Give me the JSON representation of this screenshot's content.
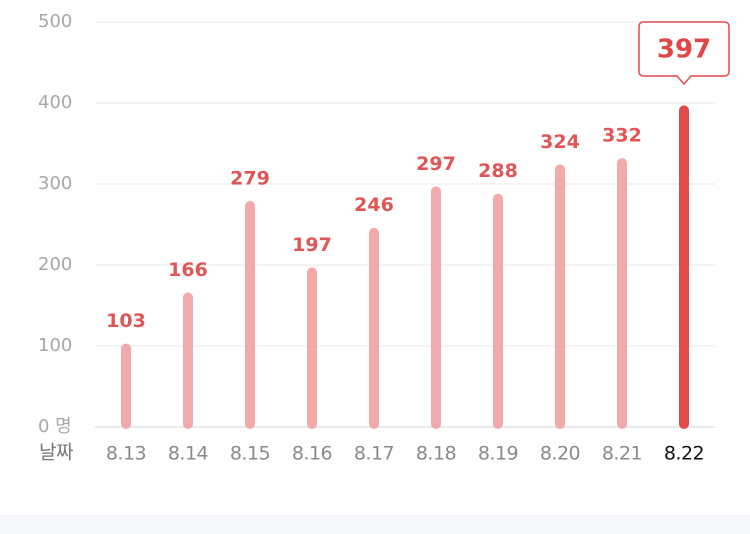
{
  "chart_data": {
    "type": "bar",
    "categories": [
      "8.13",
      "8.14",
      "8.15",
      "8.16",
      "8.17",
      "8.18",
      "8.19",
      "8.20",
      "8.21",
      "8.22"
    ],
    "values": [
      103,
      166,
      279,
      197,
      246,
      297,
      288,
      324,
      332,
      397
    ],
    "colors": [
      "#f2a9a9",
      "#f2a9a9",
      "#f2a9a9",
      "#f2a9a9",
      "#f2a9a9",
      "#f2a9a9",
      "#f2a9a9",
      "#f2a9a9",
      "#f2a9a9",
      "#e34a4a"
    ],
    "x_label": "날짜",
    "ylim": [
      0,
      500
    ],
    "yticks": [
      {
        "value": 0,
        "label": "0 명"
      },
      100,
      200,
      300,
      400,
      500
    ],
    "grid": true
  }
}
